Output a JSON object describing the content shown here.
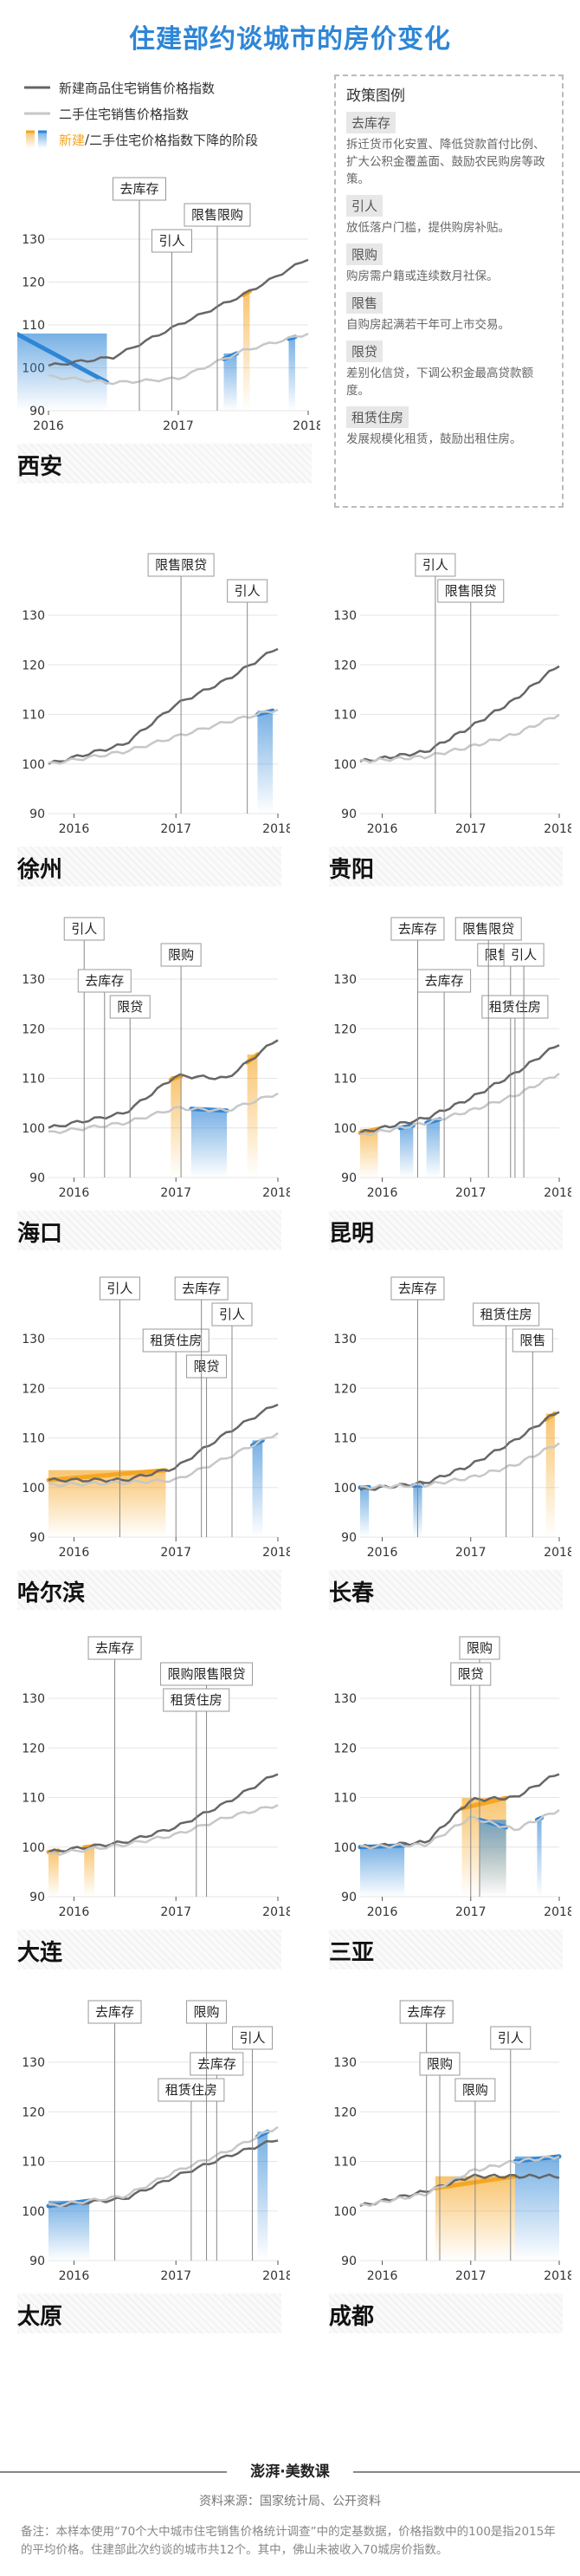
{
  "title": "住建部约谈城市的房价变化",
  "legend": {
    "new_label": "新建商品住宅销售价格指数",
    "used_label": "二手住宅销售价格指数",
    "decline_new": "新建",
    "decline_sep": "/",
    "decline_rest": "二手住宅价格指数下降的阶段"
  },
  "colors": {
    "new_line": "#666666",
    "used_line": "#c7c7c7",
    "new_decline": "#f5a623",
    "used_decline": "#2e86d6"
  },
  "policy_legend": {
    "heading": "政策图例",
    "items": [
      {
        "name": "去库存",
        "desc": "拆迁货币化安置、降低贷款首付比例、扩大公积金覆盖面、鼓励农民购房等政策。"
      },
      {
        "name": "引人",
        "desc": "放低落户门槛，提供购房补贴。"
      },
      {
        "name": "限购",
        "desc": "购房需户籍或连续数月社保。"
      },
      {
        "name": "限售",
        "desc": "自购房起满若干年可上市交易。"
      },
      {
        "name": "限贷",
        "desc": "差别化信贷，下调公积金最高贷款额度。"
      },
      {
        "name": "租赁住房",
        "desc": "发展规模化租赁，鼓励出租住房。"
      }
    ]
  },
  "chart_data": [
    {
      "type": "line",
      "city": "西安",
      "x": [
        2016.0,
        2016.5,
        2017.0,
        2017.5,
        2018.0
      ],
      "x_ticks": [
        "2016",
        "2017",
        "2018"
      ],
      "ylim": [
        90,
        130
      ],
      "y_ticks": [
        90,
        100,
        110,
        120,
        130
      ],
      "series": [
        {
          "name": "新建商品住宅销售价格指数",
          "values": [
            100.5,
            102.5,
            110,
            117,
            125.5
          ]
        },
        {
          "name": "二手住宅销售价格指数",
          "values": [
            98,
            96.5,
            97.5,
            104,
            108
          ]
        }
      ],
      "policies": [
        {
          "label": "去库存",
          "x": 2016.7
        },
        {
          "label": "限售限购",
          "x": 2017.3
        },
        {
          "label": "引人",
          "x": 2016.95
        }
      ]
    },
    {
      "type": "line",
      "city": "徐州",
      "x": [
        2015.75,
        2016.5,
        2017.0,
        2017.5,
        2018.0
      ],
      "x_ticks": [
        "2016",
        "2017",
        "2018"
      ],
      "ylim": [
        90,
        130
      ],
      "y_ticks": [
        90,
        100,
        110,
        120,
        130
      ],
      "series": [
        {
          "name": "新建商品住宅销售价格指数",
          "values": [
            100,
            104,
            112,
            117,
            123.5
          ]
        },
        {
          "name": "二手住宅销售价格指数",
          "values": [
            100,
            102.5,
            105.5,
            108.5,
            111
          ]
        }
      ],
      "policies": [
        {
          "label": "限售限贷",
          "x": 2017.05
        },
        {
          "label": "引人",
          "x": 2017.7
        }
      ]
    },
    {
      "type": "line",
      "city": "贵阳",
      "x": [
        2015.75,
        2016.5,
        2017.0,
        2017.5,
        2018.0
      ],
      "x_ticks": [
        "2016",
        "2017",
        "2018"
      ],
      "ylim": [
        90,
        130
      ],
      "y_ticks": [
        90,
        100,
        110,
        120,
        130
      ],
      "series": [
        {
          "name": "新建商品住宅销售价格指数",
          "values": [
            100.5,
            102.5,
            107.5,
            113,
            120
          ]
        },
        {
          "name": "二手住宅销售价格指数",
          "values": [
            100.5,
            101.5,
            103.5,
            106,
            110
          ]
        }
      ],
      "policies": [
        {
          "label": "引人",
          "x": 2016.6
        },
        {
          "label": "限售限贷",
          "x": 2017.0
        }
      ]
    },
    {
      "type": "line",
      "city": "海口",
      "x": [
        2015.75,
        2016.5,
        2017.0,
        2017.5,
        2018.0
      ],
      "x_ticks": [
        "2016",
        "2017",
        "2018"
      ],
      "ylim": [
        90,
        130
      ],
      "y_ticks": [
        90,
        100,
        110,
        120,
        130
      ],
      "series": [
        {
          "name": "新建商品住宅销售价格指数",
          "values": [
            100,
            103,
            110.5,
            110,
            118
          ]
        },
        {
          "name": "二手住宅销售价格指数",
          "values": [
            99,
            101,
            104,
            103.5,
            107
          ]
        }
      ],
      "policies": [
        {
          "label": "引人",
          "x": 2016.1
        },
        {
          "label": "限购",
          "x": 2017.05
        },
        {
          "label": "去库存",
          "x": 2016.3
        },
        {
          "label": "限贷",
          "x": 2016.55
        }
      ]
    },
    {
      "type": "line",
      "city": "昆明",
      "x": [
        2015.75,
        2016.5,
        2017.0,
        2017.5,
        2018.0
      ],
      "x_ticks": [
        "2016",
        "2017",
        "2018"
      ],
      "ylim": [
        90,
        130
      ],
      "y_ticks": [
        90,
        100,
        110,
        120,
        130
      ],
      "series": [
        {
          "name": "新建商品住宅销售价格指数",
          "values": [
            99,
            102,
            106,
            111,
            117
          ]
        },
        {
          "name": "二手住宅销售价格指数",
          "values": [
            98.5,
            101,
            103.5,
            106.5,
            111
          ]
        }
      ],
      "policies": [
        {
          "label": "去库存",
          "x": 2016.4
        },
        {
          "label": "限售限贷",
          "x": 2017.45
        },
        {
          "label": "去库存",
          "x": 2016.7
        },
        {
          "label": "租赁住房",
          "x": 2017.5
        },
        {
          "label": "限售限贷",
          "x": 2017.2
        },
        {
          "label": "引人",
          "x": 2017.6
        }
      ]
    },
    {
      "type": "line",
      "city": "哈尔滨",
      "x": [
        2015.75,
        2016.5,
        2017.0,
        2017.5,
        2018.0
      ],
      "x_ticks": [
        "2016",
        "2017",
        "2018"
      ],
      "ylim": [
        90,
        130
      ],
      "y_ticks": [
        90,
        100,
        110,
        120,
        130
      ],
      "series": [
        {
          "name": "新建商品住宅销售价格指数",
          "values": [
            101.5,
            101.5,
            104,
            111,
            117
          ]
        },
        {
          "name": "二手住宅销售价格指数",
          "values": [
            100.5,
            101,
            101.5,
            106,
            111
          ]
        }
      ],
      "policies": [
        {
          "label": "引人",
          "x": 2016.45
        },
        {
          "label": "引人",
          "x": 2017.55
        },
        {
          "label": "租赁住房",
          "x": 2017.0
        },
        {
          "label": "限贷",
          "x": 2017.3
        },
        {
          "label": "去库存",
          "x": 2017.25
        }
      ]
    },
    {
      "type": "line",
      "city": "长春",
      "x": [
        2015.75,
        2016.5,
        2017.0,
        2017.5,
        2018.0
      ],
      "x_ticks": [
        "2016",
        "2017",
        "2018"
      ],
      "ylim": [
        90,
        130
      ],
      "y_ticks": [
        90,
        100,
        110,
        120,
        130
      ],
      "series": [
        {
          "name": "新建商品住宅销售价格指数",
          "values": [
            99.5,
            101,
            104.5,
            109.5,
            115.5
          ]
        },
        {
          "name": "二手住宅销售价格指数",
          "values": [
            100,
            100.5,
            102,
            104.5,
            109
          ]
        }
      ],
      "policies": [
        {
          "label": "去库存",
          "x": 2016.4
        },
        {
          "label": "租赁住房",
          "x": 2017.4
        },
        {
          "label": "限售",
          "x": 2017.7
        }
      ]
    },
    {
      "type": "line",
      "city": "大连",
      "x": [
        2015.75,
        2016.5,
        2017.0,
        2017.5,
        2018.0
      ],
      "x_ticks": [
        "2016",
        "2017",
        "2018"
      ],
      "ylim": [
        90,
        130
      ],
      "y_ticks": [
        90,
        100,
        110,
        120,
        130
      ],
      "series": [
        {
          "name": "新建商品住宅销售价格指数",
          "values": [
            99,
            101,
            104,
            109,
            115
          ]
        },
        {
          "name": "二手住宅销售价格指数",
          "values": [
            98.5,
            100.5,
            102.5,
            106,
            108.5
          ]
        }
      ],
      "policies": [
        {
          "label": "去库存",
          "x": 2016.4
        },
        {
          "label": "限购限售限贷",
          "x": 2017.3
        },
        {
          "label": "租赁住房",
          "x": 2017.2
        }
      ]
    },
    {
      "type": "line",
      "city": "三亚",
      "x": [
        2015.75,
        2016.5,
        2017.0,
        2017.5,
        2018.0
      ],
      "x_ticks": [
        "2016",
        "2017",
        "2018"
      ],
      "ylim": [
        90,
        130
      ],
      "y_ticks": [
        90,
        100,
        110,
        120,
        130
      ],
      "series": [
        {
          "name": "新建商品住宅销售价格指数",
          "values": [
            100,
            101,
            109.5,
            110,
            115
          ]
        },
        {
          "name": "二手住宅销售价格指数",
          "values": [
            100,
            100.5,
            106,
            103.5,
            107.5
          ]
        }
      ],
      "policies": [
        {
          "label": "限购",
          "x": 2017.1
        },
        {
          "label": "限贷",
          "x": 2017.0
        }
      ]
    },
    {
      "type": "line",
      "city": "太原",
      "x": [
        2015.75,
        2016.5,
        2017.0,
        2017.5,
        2018.0
      ],
      "x_ticks": [
        "2016",
        "2017",
        "2018"
      ],
      "ylim": [
        90,
        130
      ],
      "y_ticks": [
        90,
        100,
        110,
        120,
        130
      ],
      "series": [
        {
          "name": "新建商品住宅销售价格指数",
          "values": [
            101,
            102.5,
            107,
            111,
            114.5
          ]
        },
        {
          "name": "二手住宅销售价格指数",
          "values": [
            101,
            103,
            108,
            112,
            117
          ]
        }
      ],
      "policies": [
        {
          "label": "去库存",
          "x": 2016.4
        },
        {
          "label": "引人",
          "x": 2017.75
        },
        {
          "label": "去库存",
          "x": 2017.4
        },
        {
          "label": "租赁住房",
          "x": 2017.15
        },
        {
          "label": "限购",
          "x": 2017.3
        }
      ]
    },
    {
      "type": "line",
      "city": "成都",
      "x": [
        2015.75,
        2016.5,
        2017.0,
        2017.5,
        2018.0
      ],
      "x_ticks": [
        "2016",
        "2017",
        "2018"
      ],
      "ylim": [
        90,
        130
      ],
      "y_ticks": [
        90,
        100,
        110,
        120,
        130
      ],
      "series": [
        {
          "name": "新建商品住宅销售价格指数",
          "values": [
            101,
            104,
            107,
            107,
            107
          ]
        },
        {
          "name": "二手住宅销售价格指数",
          "values": [
            101,
            103.5,
            108,
            110,
            111
          ]
        }
      ],
      "policies": [
        {
          "label": "去库存",
          "x": 2016.5
        },
        {
          "label": "引人",
          "x": 2017.45
        },
        {
          "label": "限购",
          "x": 2016.65
        },
        {
          "label": "限购",
          "x": 2017.05
        }
      ]
    }
  ],
  "footer": {
    "logo": "澎湃·美数课",
    "source": "资料来源：国家统计局、公开资料",
    "note": "备注：本样本使用“70个大中城市住宅销售价格统计调查”中的定基数据，价格指数中的100是指2015年的平均价格。住建部此次约谈的城市共12个。其中，佛山未被收入70城房价指数。"
  }
}
